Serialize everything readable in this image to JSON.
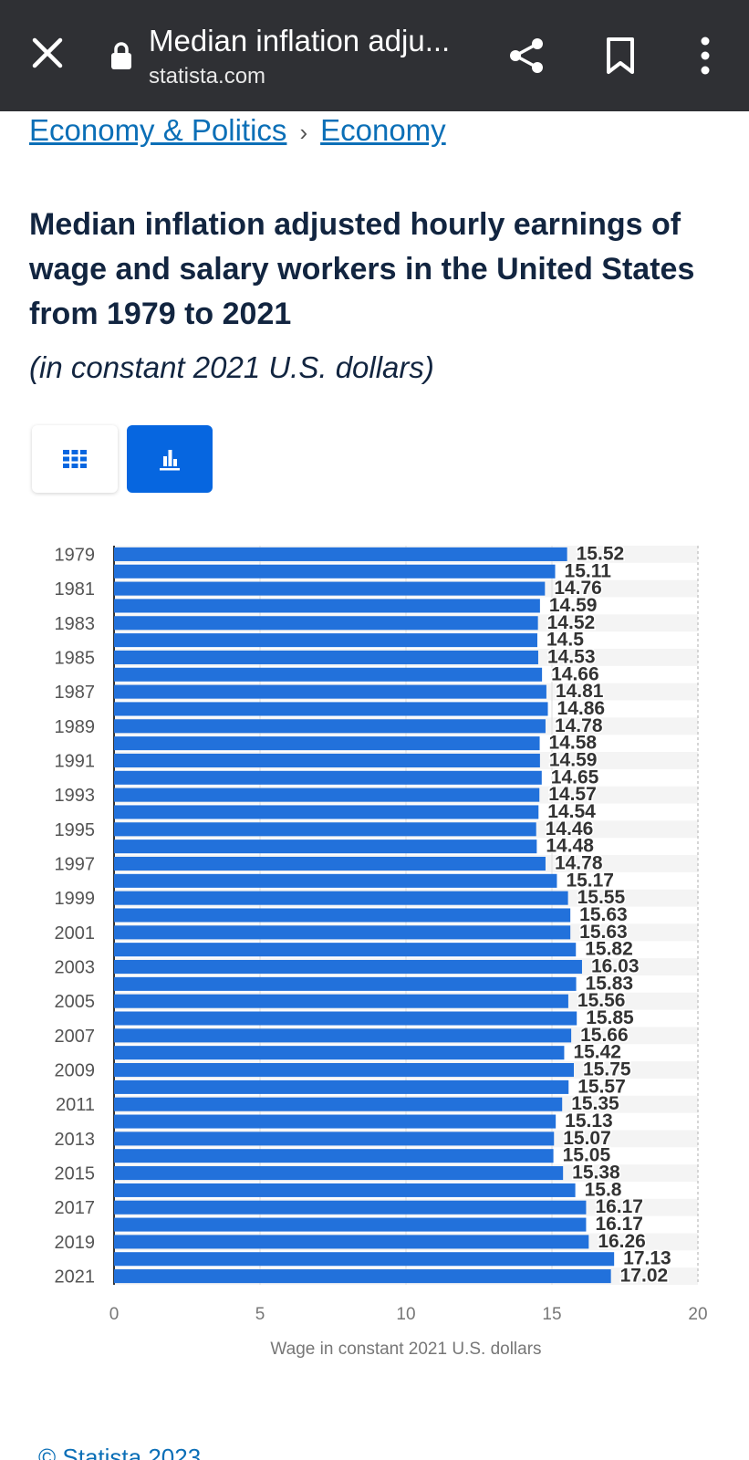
{
  "browser": {
    "title": "Median inflation adju...",
    "domain": "statista.com",
    "icons": [
      "close-icon",
      "lock-icon",
      "share-icon",
      "bookmark-icon",
      "more-vert-icon"
    ]
  },
  "breadcrumb": {
    "items": [
      "Economy & Politics",
      "Economy"
    ],
    "separator": "›"
  },
  "page": {
    "title": "Median inflation adjusted hourly earnings of wage and salary workers in the United States from 1979 to 2021",
    "subtitle": "(in constant 2021 U.S. dollars)"
  },
  "view_toggle": {
    "options": [
      "table-view",
      "chart-view"
    ],
    "selected": "chart-view",
    "accent": "#0666e0"
  },
  "chart_data": {
    "type": "bar",
    "orientation": "horizontal",
    "categories": [
      "1979",
      "1980",
      "1981",
      "1982",
      "1983",
      "1984",
      "1985",
      "1986",
      "1987",
      "1988",
      "1989",
      "1990",
      "1991",
      "1992",
      "1993",
      "1994",
      "1995",
      "1996",
      "1997",
      "1998",
      "1999",
      "2000",
      "2001",
      "2002",
      "2003",
      "2004",
      "2005",
      "2006",
      "2007",
      "2008",
      "2009",
      "2010",
      "2011",
      "2012",
      "2013",
      "2014",
      "2015",
      "2016",
      "2017",
      "2018",
      "2019",
      "2020",
      "2021"
    ],
    "category_labels_shown": [
      "1979",
      "1981",
      "1983",
      "1985",
      "1987",
      "1989",
      "1991",
      "1993",
      "1995",
      "1997",
      "1999",
      "2001",
      "2003",
      "2005",
      "2007",
      "2009",
      "2011",
      "2013",
      "2015",
      "2017",
      "2019",
      "2021"
    ],
    "values": [
      15.52,
      15.11,
      14.76,
      14.59,
      14.52,
      14.5,
      14.53,
      14.66,
      14.81,
      14.86,
      14.78,
      14.58,
      14.59,
      14.65,
      14.57,
      14.54,
      14.46,
      14.48,
      14.78,
      15.17,
      15.55,
      15.63,
      15.63,
      15.82,
      16.03,
      15.83,
      15.56,
      15.85,
      15.66,
      15.42,
      15.75,
      15.57,
      15.35,
      15.13,
      15.07,
      15.05,
      15.38,
      15.8,
      16.17,
      16.17,
      16.26,
      17.13,
      17.02
    ],
    "value_labels": [
      "15.52",
      "15.11",
      "14.76",
      "14.59",
      "14.52",
      "14.5",
      "14.53",
      "14.66",
      "14.81",
      "14.86",
      "14.78",
      "14.58",
      "14.59",
      "14.65",
      "14.57",
      "14.54",
      "14.46",
      "14.48",
      "14.78",
      "15.17",
      "15.55",
      "15.63",
      "15.63",
      "15.82",
      "16.03",
      "15.83",
      "15.56",
      "15.85",
      "15.66",
      "15.42",
      "15.75",
      "15.57",
      "15.35",
      "15.13",
      "15.07",
      "15.05",
      "15.38",
      "15.8",
      "16.17",
      "16.17",
      "16.26",
      "17.13",
      "17.02"
    ],
    "xlabel": "Wage in constant 2021 U.S. dollars",
    "ylabel": "",
    "xlim": [
      0,
      20
    ],
    "xticks": [
      "0",
      "5",
      "10",
      "15",
      "20"
    ],
    "grid": true,
    "bar_color": "#2271db"
  },
  "footer": {
    "source_link": "© Statista 2023"
  }
}
